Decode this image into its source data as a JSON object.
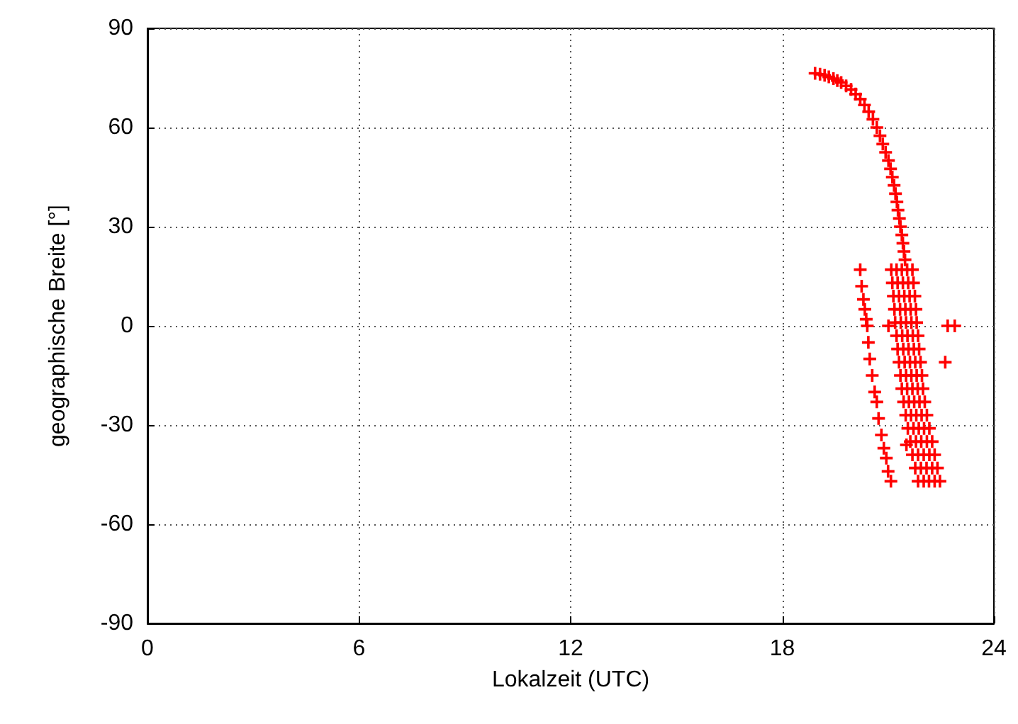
{
  "chart_data": {
    "type": "scatter",
    "xlabel": "Lokalzeit (UTC)",
    "ylabel": "geographische Breite [°]",
    "xlim": [
      0,
      24
    ],
    "xticks": [
      0,
      6,
      12,
      18,
      24
    ],
    "ylim": [
      -90,
      90
    ],
    "yticks": [
      -90,
      -60,
      -30,
      0,
      30,
      60,
      90
    ],
    "grid": true,
    "marker": "cross",
    "series": [
      {
        "color": "#ff0000",
        "x": [
          18.93,
          19.2,
          19.45,
          19.67,
          19.95,
          20.21,
          20.45,
          20.68,
          20.85,
          21.01,
          21.12,
          21.21,
          21.28,
          21.35,
          21.42,
          21.48,
          21.09,
          21.12,
          21.15,
          21.18,
          21.2,
          21.24,
          21.27,
          21.31,
          21.35,
          21.39,
          21.44,
          21.5,
          21.56,
          21.63,
          21.69,
          21.77,
          21.85,
          21.39,
          21.42,
          21.46,
          21.49,
          21.51,
          21.55,
          21.58,
          21.62,
          21.66,
          21.69,
          21.74,
          21.8,
          21.87,
          21.94,
          22.01,
          22.09,
          22.16,
          21.69,
          21.72,
          21.76,
          21.79,
          21.81,
          21.85,
          21.88,
          21.92,
          21.96,
          21.99,
          22.04,
          22.1,
          22.17,
          22.25,
          22.32,
          22.4,
          22.47,
          20.21,
          20.25,
          20.3,
          20.34,
          20.38,
          20.41,
          20.44,
          20.48,
          20.55,
          20.62,
          20.68,
          20.73,
          20.81,
          20.88,
          20.95,
          21.0,
          21.08,
          21.01,
          22.69,
          22.89,
          22.62,
          21.52,
          21.24,
          21.27,
          21.31,
          21.34,
          21.36,
          21.4,
          21.43,
          21.47,
          21.51,
          21.54,
          21.59,
          21.65,
          21.72,
          21.79,
          21.85,
          21.93,
          22.01,
          21.54,
          21.57,
          21.61,
          21.64,
          21.66,
          21.7,
          21.73,
          21.77,
          21.81,
          21.84,
          21.89,
          21.95,
          22.02,
          22.1,
          22.17,
          22.25,
          22.32,
          19.07,
          19.32,
          19.56,
          19.81,
          20.08,
          20.33,
          20.57,
          20.77,
          20.93,
          21.07,
          21.17,
          21.25,
          21.32,
          21.39,
          21.45
        ],
        "values": [
          76.4,
          75.8,
          74.8,
          73.6,
          71.5,
          68.6,
          64.8,
          60,
          55,
          50,
          45,
          40,
          35,
          30,
          25,
          20,
          17,
          13,
          9,
          5,
          1,
          -3,
          -7,
          -11,
          -15,
          -19,
          -23,
          -27,
          -31,
          -35,
          -39,
          -43,
          -47,
          17,
          13,
          9,
          5,
          1,
          -3,
          -7,
          -11,
          -15,
          -19,
          -23,
          -27,
          -31,
          -35,
          -39,
          -43,
          -47,
          17,
          13,
          9,
          5,
          1,
          -3,
          -7,
          -11,
          -15,
          -19,
          -23,
          -27,
          -31,
          -35,
          -39,
          -43,
          -47,
          17,
          12,
          8,
          5,
          2,
          0,
          -5,
          -10,
          -15,
          -20,
          -23,
          -28,
          -33,
          -37,
          -40,
          -44,
          -47,
          0,
          0,
          0,
          -11,
          -36,
          17,
          13,
          9,
          5,
          1,
          -3,
          -7,
          -11,
          -15,
          -19,
          -23,
          -27,
          -31,
          -35,
          -39,
          -43,
          -47,
          17,
          13,
          9,
          5,
          1,
          -3,
          -7,
          -11,
          -15,
          -19,
          -23,
          -27,
          -31,
          -35,
          -39,
          -43,
          -47,
          76.1,
          75.3,
          74.2,
          72.6,
          70.1,
          66.8,
          62.5,
          57.5,
          52.5,
          47.5,
          42.5,
          37.5,
          32.5,
          27.5,
          22.5
        ]
      }
    ]
  }
}
